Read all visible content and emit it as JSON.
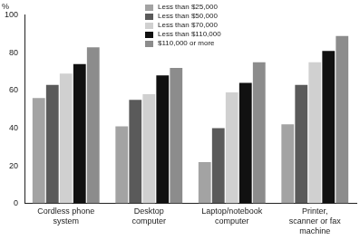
{
  "chart_data": {
    "type": "bar",
    "y_label": "%",
    "categories": [
      "Cordless phone system",
      "Desktop computer",
      "Laptop/notebook computer",
      "Printer, scanner or fax machine"
    ],
    "series": [
      {
        "name": "Less than $25,000",
        "color": "#a3a3a3",
        "values": [
          56,
          41,
          22,
          42
        ]
      },
      {
        "name": "Less than $50,000",
        "color": "#5a5a5a",
        "values": [
          63,
          55,
          40,
          63
        ]
      },
      {
        "name": "Less than $70,000",
        "color": "#d0d0d0",
        "values": [
          69,
          58,
          59,
          75
        ]
      },
      {
        "name": "Less than $110,000",
        "color": "#111111",
        "values": [
          74,
          68,
          64,
          81
        ]
      },
      {
        "name": "$110,000 or more",
        "color": "#8c8c8c",
        "values": [
          83,
          72,
          75,
          89
        ]
      }
    ],
    "ylim": [
      0,
      100
    ],
    "yticks": [
      0,
      20,
      40,
      60,
      80,
      100
    ],
    "grid": false,
    "legend": "top"
  }
}
